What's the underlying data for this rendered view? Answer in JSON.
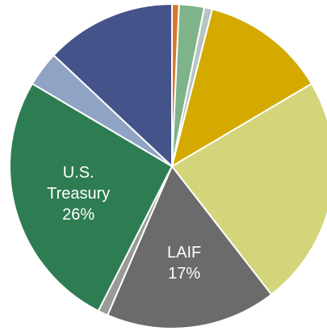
{
  "chart_data": {
    "type": "pie",
    "categories": [
      null,
      null,
      null,
      null,
      null,
      "LAIF",
      null,
      "U.S. Treasury",
      null,
      null
    ],
    "values": [
      0.7,
      2.5,
      0.8,
      12.5,
      23,
      17,
      1,
      26,
      3.5,
      13
    ],
    "value_labels": [
      null,
      null,
      null,
      null,
      null,
      "17%",
      null,
      "26%",
      null,
      null
    ],
    "colors": [
      "#d9782a",
      "#7fb38a",
      "#b8c4c4",
      "#d4aa00",
      "#d4d47a",
      "#6b6b6b",
      "#9a9a9a",
      "#2e7d52",
      "#8fa3c4",
      "#44548a"
    ]
  }
}
